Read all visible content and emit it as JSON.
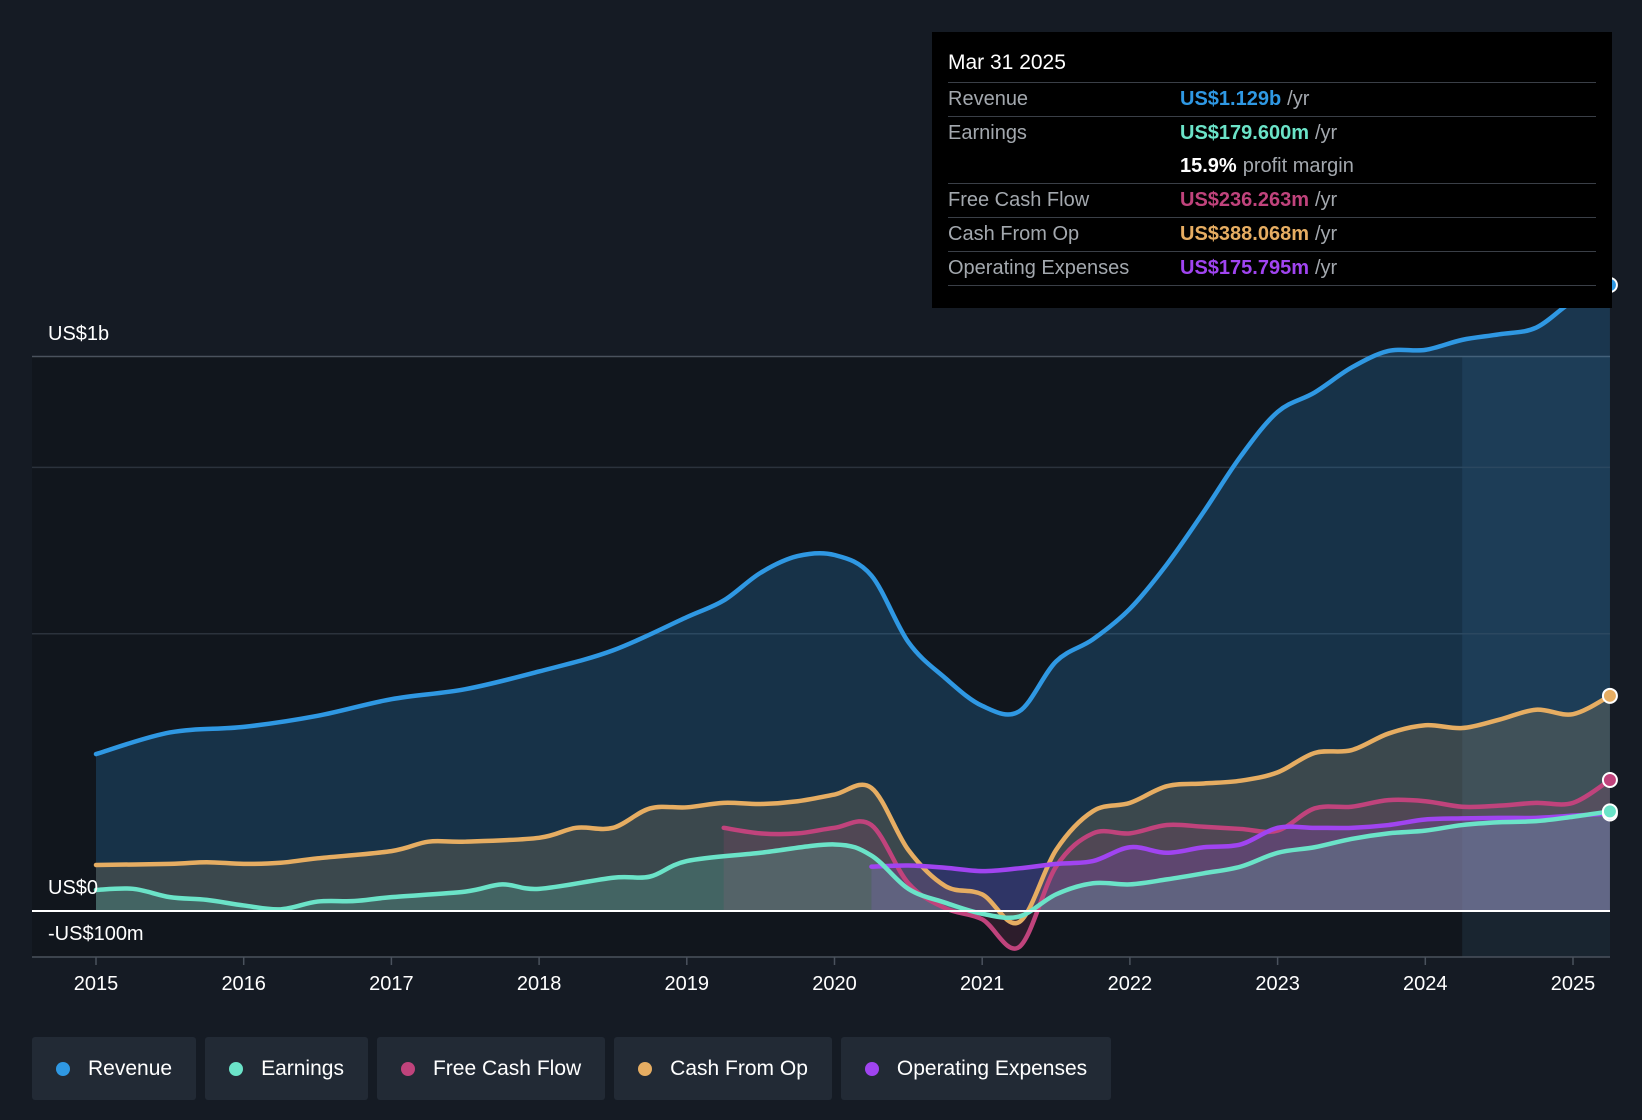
{
  "chart_data": {
    "type": "area",
    "title": "",
    "ylabel": "",
    "y_tick_labels": {
      "top": "US$1b",
      "zero": "US$0",
      "bottom": "-US$100m"
    },
    "ylim": [
      -100,
      1200
    ],
    "xlim": [
      2015,
      2025.25
    ],
    "x_ticks": [
      "2015",
      "2016",
      "2017",
      "2018",
      "2019",
      "2020",
      "2021",
      "2022",
      "2023",
      "2024",
      "2025"
    ],
    "forecast_shade_from": 2024.25,
    "series": [
      {
        "name": "Revenue",
        "color": "#2f98e3",
        "points": [
          [
            2015,
            283
          ],
          [
            2015.5,
            322
          ],
          [
            2016,
            332
          ],
          [
            2016.5,
            352
          ],
          [
            2017,
            382
          ],
          [
            2017.5,
            400
          ],
          [
            2018,
            432
          ],
          [
            2018.5,
            470
          ],
          [
            2019,
            530
          ],
          [
            2019.25,
            560
          ],
          [
            2019.5,
            610
          ],
          [
            2019.75,
            640
          ],
          [
            2020,
            642
          ],
          [
            2020.25,
            605
          ],
          [
            2020.5,
            485
          ],
          [
            2020.75,
            420
          ],
          [
            2021,
            370
          ],
          [
            2021.25,
            360
          ],
          [
            2021.5,
            450
          ],
          [
            2021.75,
            490
          ],
          [
            2022,
            545
          ],
          [
            2022.25,
            625
          ],
          [
            2022.5,
            720
          ],
          [
            2022.75,
            820
          ],
          [
            2023,
            900
          ],
          [
            2023.25,
            935
          ],
          [
            2023.5,
            980
          ],
          [
            2023.75,
            1010
          ],
          [
            2024,
            1012
          ],
          [
            2024.25,
            1030
          ],
          [
            2024.5,
            1040
          ],
          [
            2024.75,
            1052
          ],
          [
            2025,
            1100
          ],
          [
            2025.25,
            1129
          ]
        ]
      },
      {
        "name": "Earnings",
        "color": "#6be3c8",
        "points": [
          [
            2015,
            38
          ],
          [
            2015.25,
            40
          ],
          [
            2015.5,
            25
          ],
          [
            2015.75,
            20
          ],
          [
            2016,
            10
          ],
          [
            2016.25,
            3
          ],
          [
            2016.5,
            17
          ],
          [
            2016.75,
            18
          ],
          [
            2017,
            25
          ],
          [
            2017.5,
            35
          ],
          [
            2017.75,
            48
          ],
          [
            2018,
            40
          ],
          [
            2018.5,
            60
          ],
          [
            2018.75,
            62
          ],
          [
            2019,
            90
          ],
          [
            2019.5,
            105
          ],
          [
            2020,
            120
          ],
          [
            2020.25,
            100
          ],
          [
            2020.5,
            40
          ],
          [
            2020.75,
            15
          ],
          [
            2021,
            -5
          ],
          [
            2021.25,
            -10
          ],
          [
            2021.5,
            30
          ],
          [
            2021.75,
            50
          ],
          [
            2022,
            48
          ],
          [
            2022.25,
            57
          ],
          [
            2022.5,
            68
          ],
          [
            2022.75,
            80
          ],
          [
            2023,
            105
          ],
          [
            2023.25,
            115
          ],
          [
            2023.5,
            130
          ],
          [
            2023.75,
            140
          ],
          [
            2024,
            145
          ],
          [
            2024.25,
            155
          ],
          [
            2024.5,
            160
          ],
          [
            2024.75,
            162
          ],
          [
            2025,
            170
          ],
          [
            2025.25,
            179.6
          ]
        ]
      },
      {
        "name": "Free Cash Flow",
        "color": "#c0437c",
        "points": [
          [
            2019.25,
            150
          ],
          [
            2019.5,
            140
          ],
          [
            2019.75,
            140
          ],
          [
            2020,
            150
          ],
          [
            2020.25,
            155
          ],
          [
            2020.5,
            50
          ],
          [
            2020.75,
            5
          ],
          [
            2021,
            -15
          ],
          [
            2021.25,
            -65
          ],
          [
            2021.5,
            80
          ],
          [
            2021.75,
            140
          ],
          [
            2022,
            140
          ],
          [
            2022.25,
            155
          ],
          [
            2022.5,
            152
          ],
          [
            2022.75,
            148
          ],
          [
            2023,
            145
          ],
          [
            2023.25,
            185
          ],
          [
            2023.5,
            188
          ],
          [
            2023.75,
            200
          ],
          [
            2024,
            198
          ],
          [
            2024.25,
            188
          ],
          [
            2024.5,
            190
          ],
          [
            2024.75,
            195
          ],
          [
            2025,
            195
          ],
          [
            2025.25,
            236.263
          ]
        ]
      },
      {
        "name": "Cash From Op",
        "color": "#e6ad62",
        "points": [
          [
            2015,
            83
          ],
          [
            2015.5,
            85
          ],
          [
            2015.75,
            88
          ],
          [
            2016,
            85
          ],
          [
            2016.25,
            87
          ],
          [
            2016.5,
            95
          ],
          [
            2017,
            108
          ],
          [
            2017.25,
            125
          ],
          [
            2017.5,
            125
          ],
          [
            2018,
            132
          ],
          [
            2018.25,
            150
          ],
          [
            2018.5,
            150
          ],
          [
            2018.75,
            185
          ],
          [
            2019,
            187
          ],
          [
            2019.25,
            195
          ],
          [
            2019.5,
            193
          ],
          [
            2019.75,
            198
          ],
          [
            2020,
            210
          ],
          [
            2020.25,
            222
          ],
          [
            2020.5,
            110
          ],
          [
            2020.75,
            45
          ],
          [
            2021,
            30
          ],
          [
            2021.25,
            -20
          ],
          [
            2021.5,
            110
          ],
          [
            2021.75,
            180
          ],
          [
            2022,
            195
          ],
          [
            2022.25,
            225
          ],
          [
            2022.5,
            230
          ],
          [
            2022.75,
            235
          ],
          [
            2023,
            250
          ],
          [
            2023.25,
            285
          ],
          [
            2023.5,
            290
          ],
          [
            2023.75,
            320
          ],
          [
            2024,
            335
          ],
          [
            2024.25,
            330
          ],
          [
            2024.5,
            345
          ],
          [
            2024.75,
            363
          ],
          [
            2025,
            355
          ],
          [
            2025.25,
            388.068
          ]
        ]
      },
      {
        "name": "Operating Expenses",
        "color": "#a044f0",
        "points": [
          [
            2020.25,
            80
          ],
          [
            2020.5,
            82
          ],
          [
            2020.75,
            78
          ],
          [
            2021,
            72
          ],
          [
            2021.25,
            77
          ],
          [
            2021.5,
            85
          ],
          [
            2021.75,
            90
          ],
          [
            2022,
            115
          ],
          [
            2022.25,
            105
          ],
          [
            2022.5,
            115
          ],
          [
            2022.75,
            120
          ],
          [
            2023,
            150
          ],
          [
            2023.25,
            150
          ],
          [
            2023.5,
            150
          ],
          [
            2023.75,
            155
          ],
          [
            2024,
            165
          ],
          [
            2024.25,
            167
          ],
          [
            2024.5,
            168
          ],
          [
            2024.75,
            168
          ],
          [
            2025,
            172
          ],
          [
            2025.25,
            175.795
          ]
        ]
      }
    ]
  },
  "tooltip": {
    "date": "Mar 31 2025",
    "rows": [
      {
        "label": "Revenue",
        "value": "US$1.129b",
        "unit": "/yr",
        "color": "#2f98e3"
      },
      {
        "label": "Earnings",
        "value": "US$179.600m",
        "unit": "/yr",
        "color": "#6be3c8"
      },
      {
        "label": "",
        "value": "15.9%",
        "unit": "profit margin",
        "color": "#ffffff"
      },
      {
        "label": "Free Cash Flow",
        "value": "US$236.263m",
        "unit": "/yr",
        "color": "#c0437c"
      },
      {
        "label": "Cash From Op",
        "value": "US$388.068m",
        "unit": "/yr",
        "color": "#e6ad62"
      },
      {
        "label": "Operating Expenses",
        "value": "US$175.795m",
        "unit": "/yr",
        "color": "#a044f0"
      }
    ]
  },
  "legend": [
    {
      "label": "Revenue",
      "color": "#2f98e3"
    },
    {
      "label": "Earnings",
      "color": "#6be3c8"
    },
    {
      "label": "Free Cash Flow",
      "color": "#c0437c"
    },
    {
      "label": "Cash From Op",
      "color": "#e6ad62"
    },
    {
      "label": "Operating Expenses",
      "color": "#a044f0"
    }
  ]
}
